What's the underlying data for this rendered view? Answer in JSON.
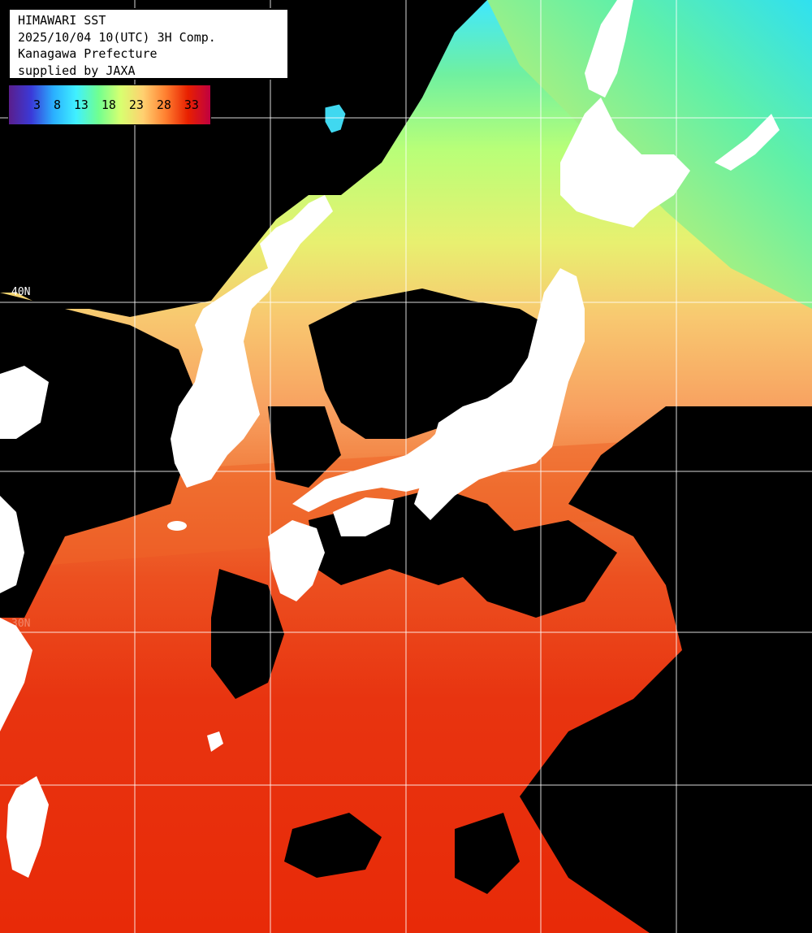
{
  "title_box": {
    "line1": "HIMAWARI SST",
    "line2": "2025/10/04 10(UTC) 3H Comp.",
    "line3": "Kanagawa Prefecture",
    "line4": "supplied by JAXA"
  },
  "colorbar": {
    "ticks": [
      "3",
      "8",
      "13",
      "18",
      "23",
      "28",
      "33"
    ],
    "gradient_colors": [
      "#5a1e8c",
      "#3a3ad8",
      "#2ab0ff",
      "#40f0ff",
      "#70ff90",
      "#d8ff70",
      "#ffd070",
      "#ff8030",
      "#e82000",
      "#c00040"
    ]
  },
  "grid_labels": {
    "lat_40": "40N",
    "lat_30": "30N"
  },
  "colors": {
    "land": "#ffffff",
    "cloud_mask": "#000000",
    "grid": "#ffffff",
    "sst_cold": "#40e8ff",
    "sst_cool": "#80f080",
    "sst_mild": "#d8ff70",
    "sst_warm": "#f0c070",
    "sst_hot": "#f06020",
    "sst_hottest": "#e82800"
  }
}
